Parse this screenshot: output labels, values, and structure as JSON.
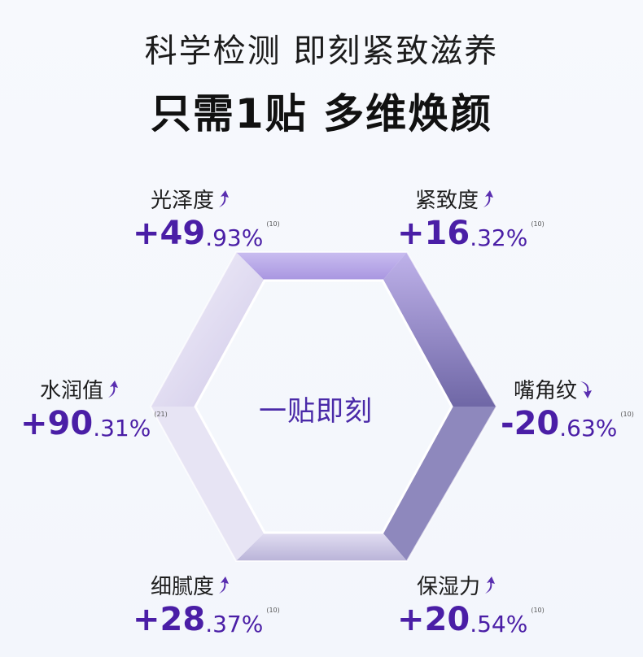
{
  "headline": "科学检测 即刻紧致滋养",
  "subheadline": "只需1贴 多维焕颜",
  "center_text": "一贴即刻",
  "accent_color": "#4a1ea6",
  "stats": [
    {
      "label": "光泽度",
      "whole": "+49",
      "decimal": ".93%",
      "ref": "(10)",
      "trend": "up"
    },
    {
      "label": "紧致度",
      "whole": "+16",
      "decimal": ".32%",
      "ref": "(10)",
      "trend": "up"
    },
    {
      "label": "水润值",
      "whole": "+90",
      "decimal": ".31%",
      "ref": "(21)",
      "trend": "up"
    },
    {
      "label": "嘴角纹",
      "whole": "-20",
      "decimal": ".63%",
      "ref": "(10)",
      "trend": "down"
    },
    {
      "label": "细腻度",
      "whole": "+28",
      "decimal": ".37%",
      "ref": "(10)",
      "trend": "up"
    },
    {
      "label": "保湿力",
      "whole": "+20",
      "decimal": ".54%",
      "ref": "(10)",
      "trend": "up"
    }
  ]
}
